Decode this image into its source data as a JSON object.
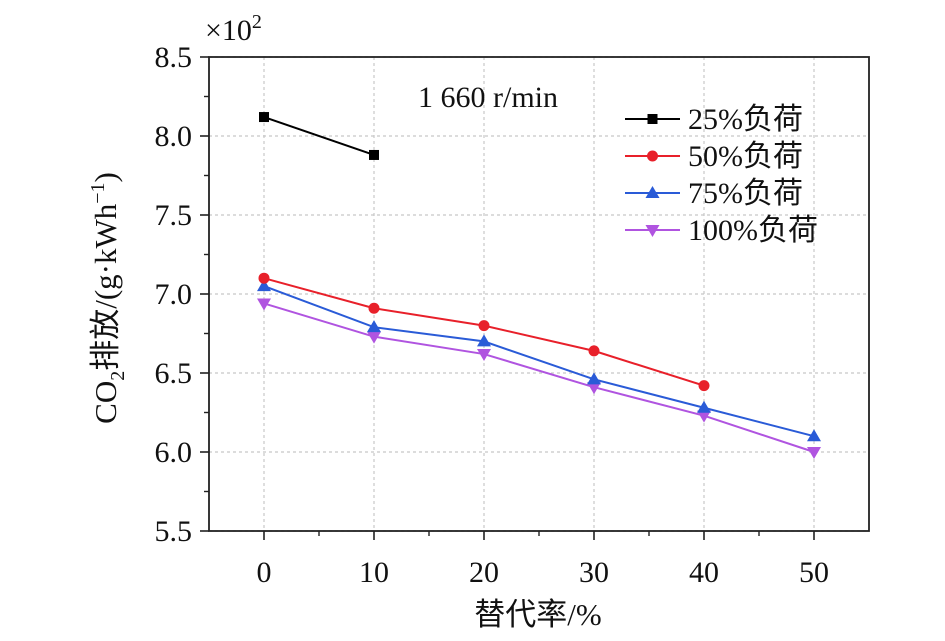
{
  "chart_data": {
    "type": "line",
    "title": "",
    "annotation": "1 660 r/min",
    "multiplier": "×10",
    "multiplier_exp": "2",
    "xlabel": "替代率/%",
    "ylabel_parts": [
      "CO",
      "2",
      "排放/(g·kWh",
      "−1",
      ")"
    ],
    "x_ticks": [
      0,
      10,
      20,
      30,
      40,
      50
    ],
    "x_tick_labels": [
      "0",
      "10",
      "20",
      "30",
      "40",
      "50"
    ],
    "y_ticks": [
      5.5,
      6.0,
      6.5,
      7.0,
      7.5,
      8.0,
      8.5
    ],
    "y_tick_labels": [
      "5.5",
      "6.0",
      "6.5",
      "7.0",
      "7.5",
      "8.0",
      "8.5"
    ],
    "xlim": [
      -5,
      55
    ],
    "ylim": [
      5.5,
      8.5
    ],
    "grid": true,
    "legend_position": "top-right",
    "series": [
      {
        "name": "25%负荷",
        "color": "#000000",
        "marker": "square",
        "x": [
          0,
          10
        ],
        "values": [
          8.12,
          7.88
        ]
      },
      {
        "name": "50%负荷",
        "color": "#e8202a",
        "marker": "circle",
        "x": [
          0,
          10,
          20,
          30,
          40
        ],
        "values": [
          7.1,
          6.91,
          6.8,
          6.64,
          6.42
        ]
      },
      {
        "name": "75%负荷",
        "color": "#2a5bd7",
        "marker": "triangle-up",
        "x": [
          0,
          10,
          20,
          30,
          40,
          50
        ],
        "values": [
          7.05,
          6.79,
          6.7,
          6.46,
          6.28,
          6.1
        ]
      },
      {
        "name": "100%负荷",
        "color": "#b054e0",
        "marker": "triangle-down",
        "x": [
          0,
          10,
          20,
          30,
          40,
          50
        ],
        "values": [
          6.94,
          6.73,
          6.62,
          6.41,
          6.23,
          6.0
        ]
      }
    ]
  }
}
